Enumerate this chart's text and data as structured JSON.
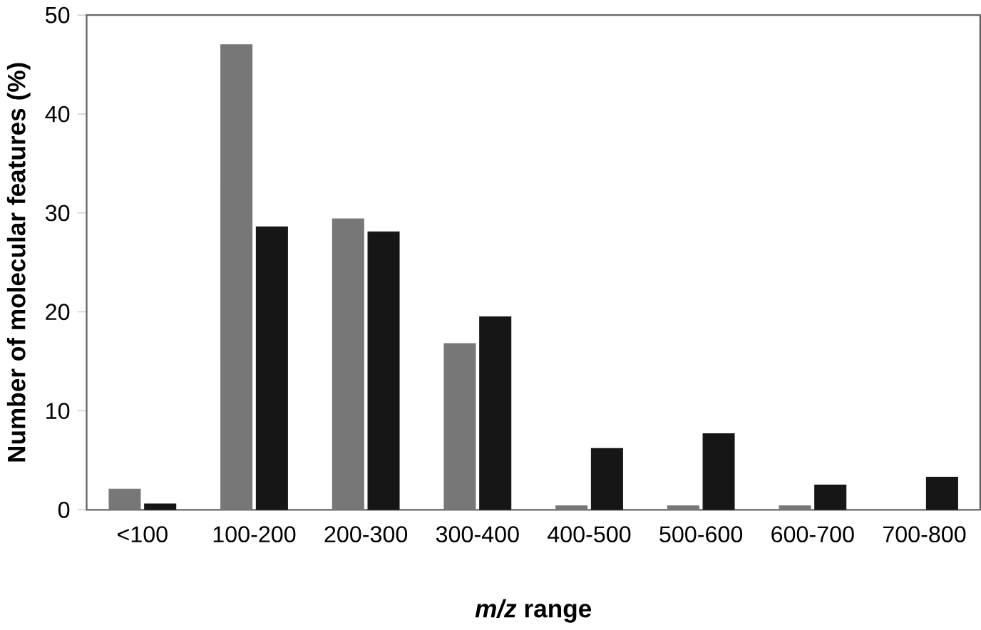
{
  "chart_data": {
    "type": "bar",
    "xlabel": "*m/z* range",
    "ylabel": "Number of molecular features (%)",
    "categories": [
      "<100",
      "100-200",
      "200-300",
      "300-400",
      "400-500",
      "500-600",
      "600-700",
      "700-800"
    ],
    "series": [
      {
        "color": "#777777",
        "values": [
          2.1,
          47,
          29.4,
          16.8,
          0.4,
          0.4,
          0.4,
          0
        ]
      },
      {
        "color": "#161616",
        "values": [
          0.6,
          28.6,
          28.1,
          19.5,
          6.2,
          7.7,
          2.5,
          3.3
        ]
      }
    ],
    "ylim": [
      0,
      50
    ],
    "yticks": [
      0,
      10,
      20,
      30,
      40,
      50
    ],
    "grid": false
  }
}
